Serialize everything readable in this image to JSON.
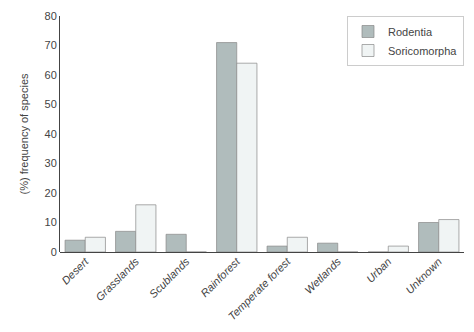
{
  "chart_data": {
    "type": "bar",
    "ylabel": "(%) frequency of species",
    "categories": [
      "Desert",
      "Grasslands",
      "Scublands",
      "Rainforest",
      "Temperate forest",
      "Wetlands",
      "Urban",
      "Unknown"
    ],
    "series": [
      {
        "name": "Rodentia",
        "color": "#b0bcbc",
        "values": [
          4,
          7,
          6,
          71,
          2,
          3,
          0,
          10
        ]
      },
      {
        "name": "Soricomorpha",
        "color": "#f0f4f4",
        "values": [
          5,
          16,
          0,
          64,
          5,
          0,
          2,
          11
        ]
      }
    ],
    "ylim": [
      0,
      80
    ],
    "yticks": [
      0,
      10,
      20,
      30,
      40,
      50,
      60,
      70,
      80
    ],
    "grid": false,
    "legend": "upper right"
  }
}
